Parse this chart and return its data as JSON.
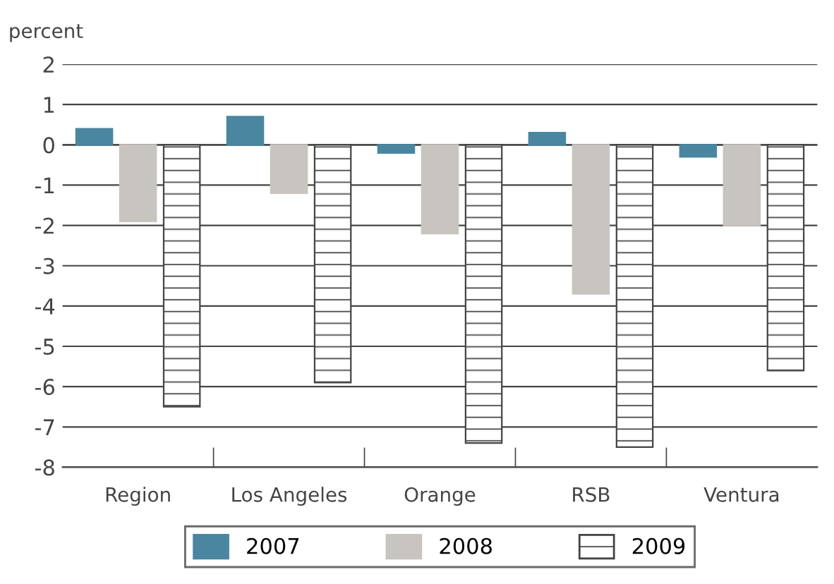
{
  "chart_data": {
    "type": "bar",
    "ylabel": "percent",
    "categories": [
      "Region",
      "Los Angeles",
      "Orange",
      "RSB",
      "Ventura"
    ],
    "series": [
      {
        "name": "2007",
        "color": "#4a86a0",
        "values": [
          0.4,
          0.7,
          -0.2,
          0.3,
          -0.3
        ]
      },
      {
        "name": "2008",
        "color": "#c8c4bf",
        "values": [
          -1.9,
          -1.2,
          -2.2,
          -3.7,
          -2.0
        ]
      },
      {
        "name": "2009",
        "color": "#444444",
        "values": [
          -6.5,
          -5.9,
          -7.4,
          -7.5,
          -5.6
        ]
      }
    ],
    "ylim": [
      -8,
      2
    ],
    "yticks": [
      {
        "value": 2,
        "label": "2"
      },
      {
        "value": 1,
        "label": "1"
      },
      {
        "value": 0,
        "label": "0"
      },
      {
        "value": -1,
        "label": "-1"
      },
      {
        "value": -2,
        "label": "-2"
      },
      {
        "value": -3,
        "label": "-3"
      },
      {
        "value": -4,
        "label": "-4"
      },
      {
        "value": -5,
        "label": "-5"
      },
      {
        "value": -6,
        "label": "-6"
      },
      {
        "value": -7,
        "label": "-7"
      },
      {
        "value": -8,
        "label": "-8"
      }
    ],
    "grid": "y",
    "legend": "bottom"
  }
}
